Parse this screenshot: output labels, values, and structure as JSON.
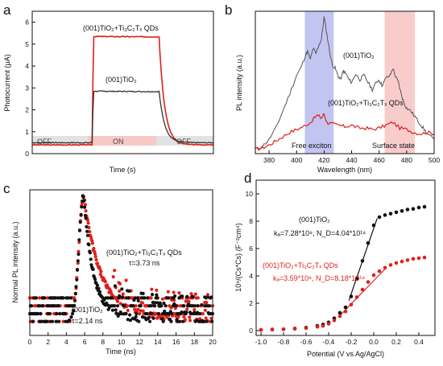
{
  "panels": {
    "a": {
      "letter": "a",
      "xlabel": "Time (s)",
      "ylabel": "Photocurrent (μA)",
      "yticks": [
        "0",
        "1",
        "2",
        "3",
        "4",
        "5",
        "6"
      ],
      "ylim": [
        0,
        6.5
      ],
      "labels": {
        "off_left": "OFF",
        "on": "ON",
        "off_right": "OFF",
        "series_red": "(001)TiO₂+Ti₃C₂Tₓ QDs",
        "series_black": "(001)TiO₂"
      },
      "chart_data": {
        "type": "line",
        "x_range": [
          0,
          1
        ],
        "on_interval": [
          0.33,
          0.7
        ],
        "series": [
          {
            "name": "(001)TiO₂+Ti₃C₂Tₓ QDs",
            "color": "#e0201b",
            "off_level": 0.4,
            "on_level": 5.35
          },
          {
            "name": "(001)TiO₂",
            "color": "#333333",
            "off_level": 0.5,
            "on_level": 2.85
          }
        ]
      }
    },
    "b": {
      "letter": "b",
      "xlabel": "Wavelength (nm)",
      "ylabel": "PL intensity (a.u.)",
      "xticks": [
        "380",
        "400",
        "420",
        "440",
        "460",
        "480",
        "500"
      ],
      "xlim": [
        370,
        500
      ],
      "labels": {
        "series_black": "(001)TiO₂",
        "series_red": "(001)TiO₂+Ti₃C₂Tₓ QDs",
        "free_exciton": "Free exciton",
        "surface_state": "Surface state"
      },
      "bands": [
        {
          "name": "Free exciton",
          "x0": 406,
          "x1": 427,
          "color": "#8f95e6"
        },
        {
          "name": "Surface state",
          "x0": 464,
          "x1": 486,
          "color": "#f4a3a3"
        }
      ],
      "chart_data": {
        "type": "line",
        "ylim": [
          0,
          1
        ],
        "series": [
          {
            "name": "(001)TiO₂",
            "color": "#555555",
            "x": [
              370,
              375,
              380,
              385,
              390,
              395,
              400,
              403,
              406,
              408,
              410,
              412,
              414,
              416,
              418,
              420,
              422,
              424,
              426,
              428,
              430,
              432,
              434,
              436,
              438,
              440,
              443,
              446,
              449,
              452,
              455,
              458,
              460,
              462,
              465,
              468,
              470,
              472,
              474,
              476,
              478,
              480,
              483,
              486,
              489,
              492,
              495,
              500
            ],
            "y": [
              0.03,
              0.05,
              0.1,
              0.18,
              0.3,
              0.42,
              0.55,
              0.6,
              0.68,
              0.72,
              0.66,
              0.74,
              0.7,
              0.76,
              0.8,
              0.96,
              0.84,
              0.72,
              0.62,
              0.6,
              0.55,
              0.52,
              0.58,
              0.56,
              0.52,
              0.5,
              0.56,
              0.52,
              0.55,
              0.5,
              0.45,
              0.5,
              0.52,
              0.48,
              0.53,
              0.55,
              0.6,
              0.54,
              0.5,
              0.42,
              0.36,
              0.32,
              0.3,
              0.26,
              0.22,
              0.18,
              0.14,
              0.1
            ]
          },
          {
            "name": "(001)TiO₂+Ti₃C₂Tₓ QDs",
            "color": "#e0201b",
            "x": [
              370,
              375,
              380,
              385,
              390,
              395,
              400,
              405,
              410,
              415,
              418,
              420,
              422,
              425,
              430,
              435,
              440,
              445,
              450,
              455,
              460,
              465,
              470,
              475,
              480,
              485,
              490,
              495,
              500
            ],
            "y": [
              0.03,
              0.04,
              0.06,
              0.09,
              0.12,
              0.15,
              0.17,
              0.19,
              0.22,
              0.27,
              0.25,
              0.28,
              0.22,
              0.21,
              0.2,
              0.19,
              0.2,
              0.18,
              0.18,
              0.17,
              0.18,
              0.2,
              0.22,
              0.18,
              0.17,
              0.15,
              0.14,
              0.15,
              0.14
            ]
          }
        ]
      }
    },
    "c": {
      "letter": "c",
      "xlabel": "Time (ns)",
      "ylabel": "Normal PL intensity (a.u.)",
      "xticks": [
        "0",
        "2",
        "4",
        "6",
        "8",
        "10",
        "12",
        "14",
        "16",
        "18",
        "20"
      ],
      "xlim": [
        0,
        20
      ],
      "labels": {
        "red_name": "(001)TiO₂+Ti₃C₂Tₓ QDs",
        "red_tau": "τ=3.73 ns",
        "black_name": "(001)TiO₂",
        "black_tau": "τ=2.14 ns"
      },
      "chart_data": {
        "type": "scatter",
        "ylim": [
          0,
          1
        ],
        "peak_time": 5.9,
        "series": [
          {
            "name": "(001)TiO₂+Ti₃C₂Tₓ QDs",
            "color": "#e0201b",
            "tau_ns": 3.73
          },
          {
            "name": "(001)TiO₂",
            "color": "#111111",
            "tau_ns": 2.14
          }
        ]
      }
    },
    "d": {
      "letter": "d",
      "xlabel": "Potential (V vs Ag/AgCl)",
      "ylabel": "10⁹/(Cs*Cs) (F⁻²cm⁴)",
      "xticks": [
        "-1.0",
        "-0.8",
        "-0.6",
        "-0.4",
        "-0.2",
        "0.0",
        "0.2",
        "0.4"
      ],
      "yticks": [
        "0",
        "2",
        "4",
        "6",
        "8",
        "10"
      ],
      "xlim": [
        -1.0,
        0.5
      ],
      "ylim": [
        0,
        11
      ],
      "labels": {
        "black_name": "(001)TiO₂",
        "black_params": "kₐ=7.28*10⁹, N_D=4.04*10¹⁸",
        "red_name": "(001)TiO₂+Ti₃C₂Tₓ QDs",
        "red_params": "kₐ=3.59*10⁹, N_D=8.18*10¹⁸"
      },
      "chart_data": {
        "type": "scatter",
        "series": [
          {
            "name": "(001)TiO₂",
            "color": "#111111",
            "x": [
              -1.0,
              -0.9,
              -0.8,
              -0.7,
              -0.6,
              -0.5,
              -0.45,
              -0.4,
              -0.35,
              -0.3,
              -0.25,
              -0.2,
              -0.15,
              -0.1,
              -0.05,
              0.0,
              0.05,
              0.1,
              0.15,
              0.2,
              0.25,
              0.3,
              0.35,
              0.4,
              0.45
            ],
            "y": [
              0.05,
              0.08,
              0.1,
              0.15,
              0.22,
              0.35,
              0.45,
              0.6,
              0.9,
              1.3,
              1.7,
              2.5,
              3.8,
              5.1,
              6.4,
              7.7,
              8.3,
              8.45,
              8.55,
              8.65,
              8.75,
              8.85,
              8.9,
              9.0,
              9.05
            ],
            "fit_x": [
              -0.22,
              0.03
            ],
            "fit_y": [
              2.2,
              8.2
            ]
          },
          {
            "name": "(001)TiO₂+Ti₃C₂Tₓ QDs",
            "color": "#e0201b",
            "x": [
              -1.0,
              -0.9,
              -0.8,
              -0.7,
              -0.6,
              -0.5,
              -0.45,
              -0.4,
              -0.35,
              -0.3,
              -0.25,
              -0.2,
              -0.15,
              -0.1,
              -0.05,
              0.0,
              0.05,
              0.1,
              0.15,
              0.2,
              0.25,
              0.3,
              0.35,
              0.4,
              0.45
            ],
            "y": [
              0.05,
              0.07,
              0.1,
              0.13,
              0.18,
              0.28,
              0.35,
              0.5,
              0.75,
              1.05,
              1.4,
              1.9,
              2.45,
              3.0,
              3.55,
              4.05,
              4.35,
              4.6,
              4.8,
              4.95,
              5.05,
              5.15,
              5.25,
              5.3,
              5.35
            ],
            "fit_x": [
              -0.3,
              0.1
            ],
            "fit_y": [
              1.1,
              4.5
            ]
          }
        ]
      }
    }
  }
}
